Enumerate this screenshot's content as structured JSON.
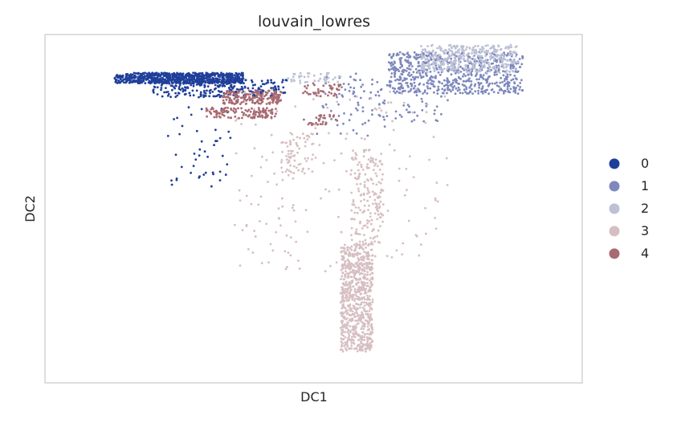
{
  "chart_data": {
    "type": "scatter",
    "title": "louvain_lowres",
    "xlabel": "DC1",
    "ylabel": "DC2",
    "xticks": [],
    "yticks": [],
    "grid": false,
    "legend_position": "right",
    "xlim": [
      0,
      100
    ],
    "ylim": [
      0,
      100
    ],
    "series": [
      {
        "name": "0",
        "color": "#1f3f9a",
        "clusters": [
          {
            "x": [
              13,
              37
            ],
            "y": [
              86,
              89
            ],
            "n": 700
          },
          {
            "x": [
              20,
              45
            ],
            "y": [
              82,
              87
            ],
            "n": 260
          },
          {
            "x": [
              22,
              35
            ],
            "y": [
              56,
              80
            ],
            "n": 45
          }
        ]
      },
      {
        "name": "1",
        "color": "#7e88bd",
        "clusters": [
          {
            "x": [
              64,
              89
            ],
            "y": [
              83,
              95
            ],
            "n": 650
          },
          {
            "x": [
              55,
              75
            ],
            "y": [
              75,
              88
            ],
            "n": 80
          },
          {
            "x": [
              50,
              65
            ],
            "y": [
              70,
              89
            ],
            "n": 50
          }
        ]
      },
      {
        "name": "2",
        "color": "#bcc1d6",
        "clusters": [
          {
            "x": [
              70,
              88
            ],
            "y": [
              89,
              97
            ],
            "n": 380
          },
          {
            "x": [
              45,
              55
            ],
            "y": [
              86,
              89
            ],
            "n": 40
          }
        ]
      },
      {
        "name": "3",
        "color": "#d6bfc2",
        "clusters": [
          {
            "x": [
              55,
              61
            ],
            "y": [
              9,
              40
            ],
            "n": 750
          },
          {
            "x": [
              57,
              63
            ],
            "y": [
              40,
              67
            ],
            "n": 170
          },
          {
            "x": [
              44,
              50
            ],
            "y": [
              60,
              72
            ],
            "n": 70
          },
          {
            "x": [
              35,
              75
            ],
            "y": [
              32,
              85
            ],
            "n": 180
          }
        ]
      },
      {
        "name": "4",
        "color": "#a86a72",
        "clusters": [
          {
            "x": [
              33,
              44
            ],
            "y": [
              80,
              84
            ],
            "n": 180
          },
          {
            "x": [
              30,
              43
            ],
            "y": [
              76,
              79
            ],
            "n": 120
          },
          {
            "x": [
              48,
              55
            ],
            "y": [
              82,
              86
            ],
            "n": 40
          },
          {
            "x": [
              48,
              55
            ],
            "y": [
              74,
              77
            ],
            "n": 30
          }
        ]
      }
    ]
  }
}
